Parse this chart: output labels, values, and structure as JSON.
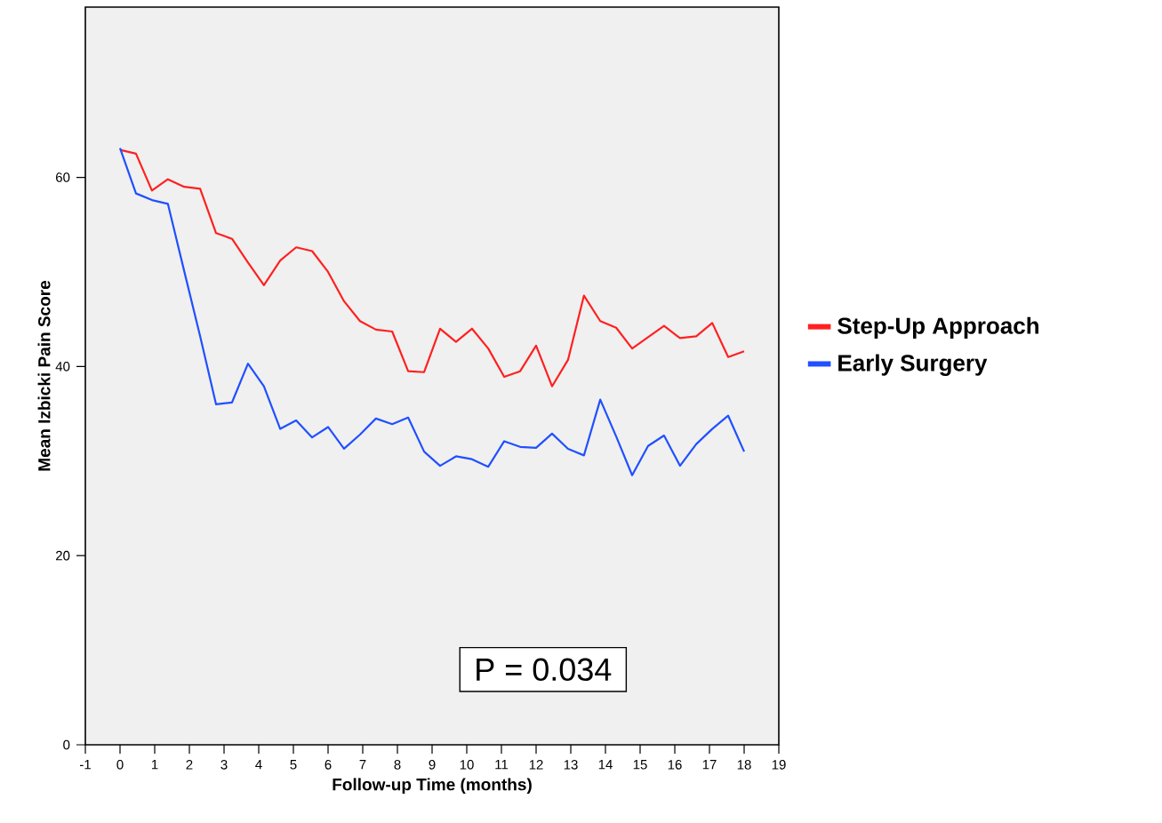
{
  "chart_data": {
    "type": "line",
    "xlabel": "Follow-up Time (months)",
    "ylabel": "Mean Izbicki Pain Score",
    "x": [
      0,
      0.46,
      0.92,
      1.38,
      1.85,
      2.31,
      2.77,
      3.23,
      3.69,
      4.15,
      4.62,
      5.08,
      5.54,
      6,
      6.46,
      6.92,
      7.38,
      7.85,
      8.31,
      8.77,
      9.23,
      9.69,
      10.15,
      10.62,
      11.08,
      11.54,
      12,
      12.46,
      12.92,
      13.38,
      13.85,
      14.31,
      14.77,
      15.23,
      15.69,
      16.15,
      16.62,
      17.08,
      17.54,
      18
    ],
    "series": [
      {
        "name": "Step-Up Approach",
        "color": "#ff2020",
        "values": [
          62.9,
          62.5,
          58.6,
          59.8,
          59.0,
          58.8,
          54.1,
          53.5,
          51.0,
          48.6,
          51.2,
          52.6,
          52.2,
          50.0,
          46.9,
          44.8,
          43.9,
          43.7,
          39.5,
          39.4,
          44.0,
          42.6,
          44.0,
          41.9,
          38.9,
          39.5,
          42.2,
          37.9,
          40.7,
          47.5,
          44.8,
          44.1,
          41.9,
          43.1,
          44.3,
          43.0,
          43.2,
          44.6,
          41.0,
          41.6
        ]
      },
      {
        "name": "Early Surgery",
        "color": "#2050ff",
        "values": [
          63.1,
          58.3,
          57.6,
          57.2,
          50.1,
          43.2,
          36.0,
          36.2,
          40.3,
          37.9,
          33.4,
          34.3,
          32.5,
          33.6,
          31.3,
          32.8,
          34.5,
          33.9,
          34.6,
          31.0,
          29.5,
          30.5,
          30.2,
          29.4,
          32.1,
          31.5,
          31.4,
          32.9,
          31.3,
          30.6,
          36.5,
          32.6,
          28.5,
          31.6,
          32.7,
          29.5,
          31.8,
          33.4,
          34.8,
          31.0
        ]
      }
    ],
    "xlim": [
      -1,
      19
    ],
    "xticks": [
      -1,
      0,
      1,
      2,
      3,
      4,
      5,
      6,
      7,
      8,
      9,
      10,
      11,
      12,
      13,
      14,
      15,
      16,
      17,
      18,
      19
    ],
    "ylim": [
      0,
      78
    ],
    "yticks": [
      0,
      20,
      40,
      60
    ],
    "legend": "right",
    "annotations": [
      "P = 0.034"
    ]
  }
}
